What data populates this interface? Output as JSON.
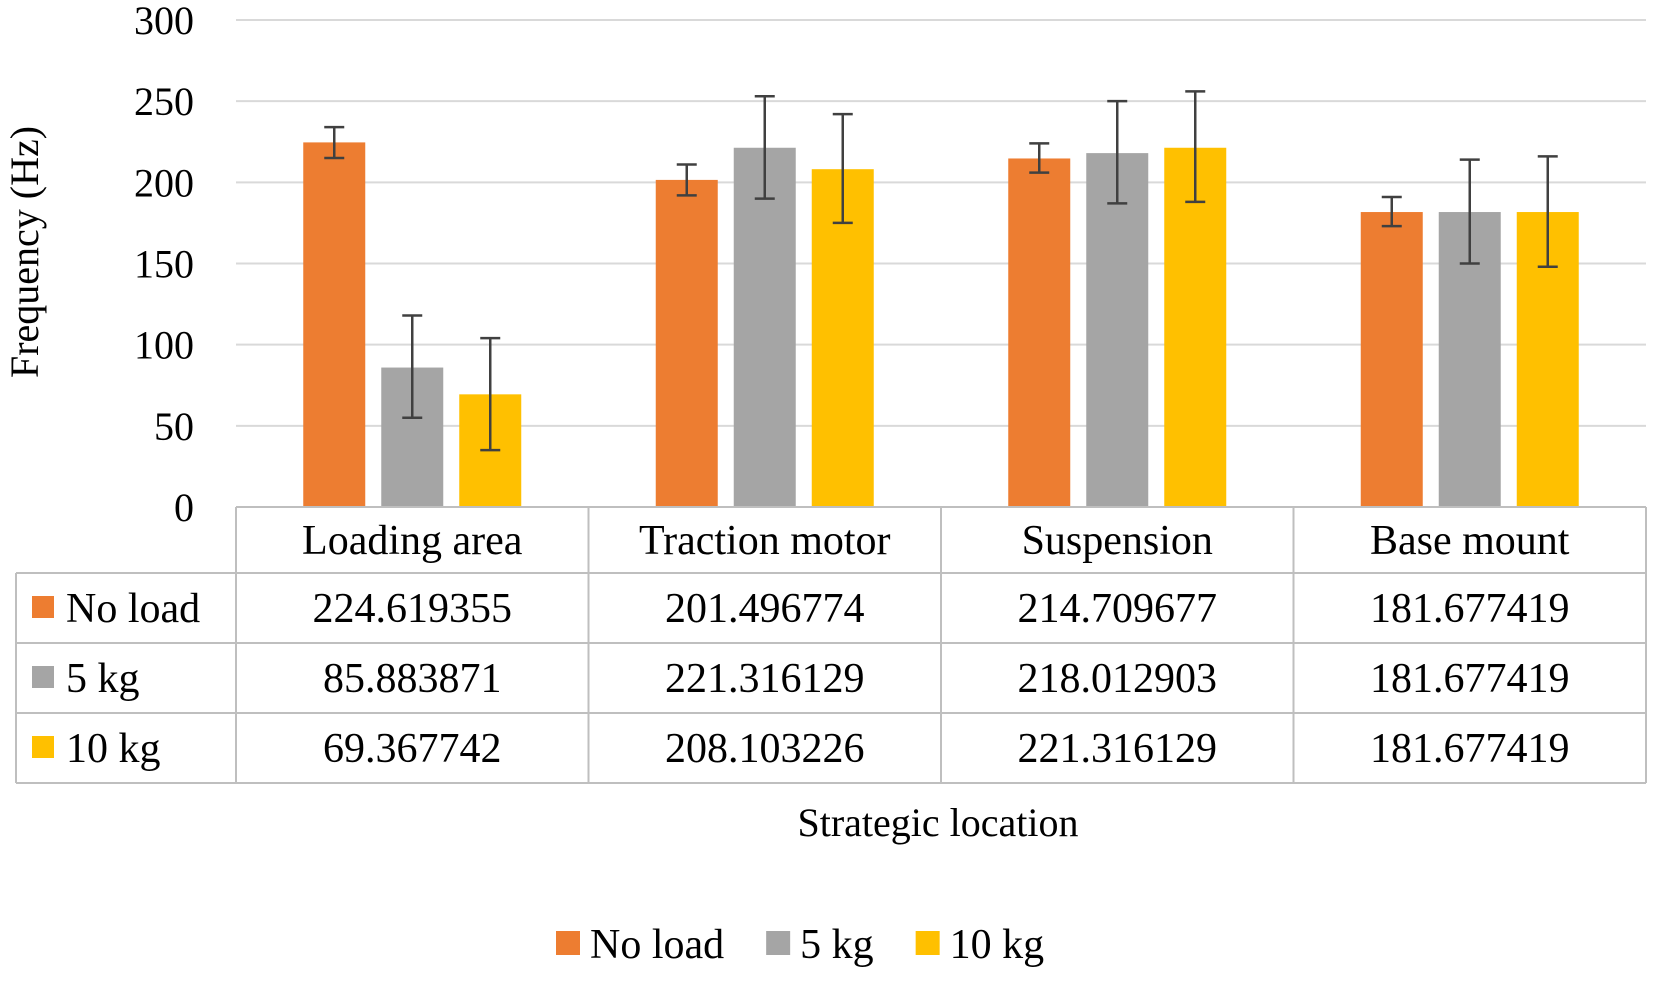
{
  "chart_data": {
    "type": "bar",
    "xlabel": "Strategic location",
    "ylabel": "Frequency (Hz)",
    "ylim": [
      0,
      300
    ],
    "yticks": [
      0,
      50,
      100,
      150,
      200,
      250,
      300
    ],
    "grid": true,
    "legend_position": "bottom",
    "data_table": true,
    "categories": [
      "Loading area",
      "Traction motor",
      "Suspension",
      "Base mount"
    ],
    "series": [
      {
        "name": "No load",
        "color": "#ED7D31",
        "values": [
          224.6,
          201.5,
          214.7,
          181.7
        ],
        "table_values": [
          "224.619355",
          "201.496774",
          "214.709677",
          "181.677419"
        ],
        "error_low": [
          215,
          192,
          206,
          173
        ],
        "error_high": [
          234,
          211,
          224,
          191
        ]
      },
      {
        "name": "5 kg",
        "color": "#A5A5A5",
        "values": [
          85.9,
          221.3,
          218.0,
          181.7
        ],
        "table_values": [
          "85.883871",
          "221.316129",
          "218.012903",
          "181.677419"
        ],
        "error_low": [
          55,
          190,
          187,
          150
        ],
        "error_high": [
          118,
          253,
          250,
          214
        ]
      },
      {
        "name": "10 kg",
        "color": "#FFC000",
        "values": [
          69.4,
          208.1,
          221.3,
          181.7
        ],
        "table_values": [
          "69.367742",
          "208.103226",
          "221.316129",
          "181.677419"
        ],
        "error_low": [
          35,
          175,
          188,
          148
        ],
        "error_high": [
          104,
          242,
          256,
          216
        ]
      }
    ]
  }
}
